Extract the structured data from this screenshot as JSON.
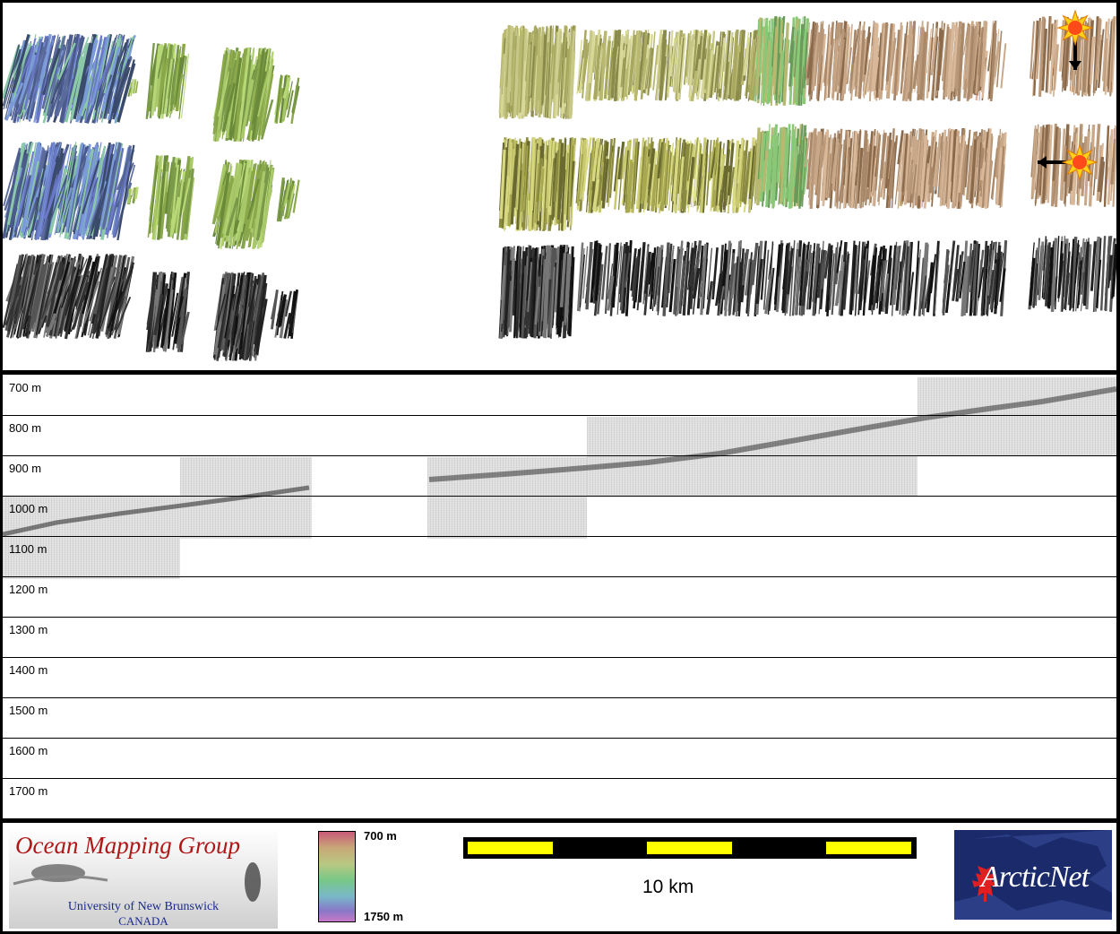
{
  "profile": {
    "depth_labels": [
      "700 m",
      "800 m",
      "900 m",
      "1000 m",
      "1100 m",
      "1200 m",
      "1300 m",
      "1400 m",
      "1500 m",
      "1600 m",
      "1700 m"
    ]
  },
  "colorbar": {
    "top_label": "700 m",
    "bottom_label": "1750 m"
  },
  "scale": {
    "label": "10 km"
  },
  "logos": {
    "omg_title": "Ocean Mapping Group",
    "omg_university": "University of New Brunswick",
    "omg_country": "CANADA",
    "arcticnet": "ArcticNet"
  },
  "colors": {
    "scalebar_fill": "#ffff00",
    "omg_red": "#b01818",
    "arcticnet_blue": "#1a2a6a"
  },
  "icons": [
    "sun-illumination-icon-north",
    "sun-illumination-icon-east",
    "arrow-down-icon",
    "arrow-left-icon",
    "maple-leaf-icon"
  ]
}
